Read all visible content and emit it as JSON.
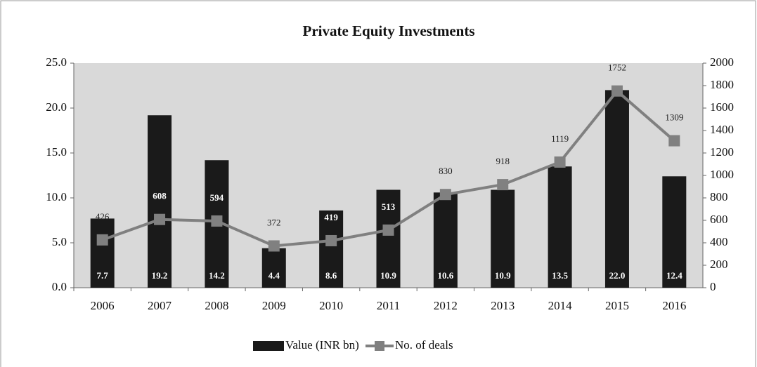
{
  "chart_data": {
    "type": "combo",
    "title": "Private Equity Investments",
    "categories": [
      "2006",
      "2007",
      "2008",
      "2009",
      "2010",
      "2011",
      "2012",
      "2013",
      "2014",
      "2015",
      "2016"
    ],
    "series": [
      {
        "name": "Value (INR bn)",
        "type": "bar",
        "color": "#1a1a1a",
        "values": [
          7.7,
          19.2,
          14.2,
          4.4,
          8.6,
          10.9,
          10.6,
          10.9,
          13.5,
          22.0,
          12.4
        ],
        "value_labels": [
          "7.7",
          "19.2",
          "14.2",
          "4.4",
          "8.6",
          "10.9",
          "10.6",
          "10.9",
          "13.5",
          "22.0",
          "12.4"
        ]
      },
      {
        "name": "No. of deals",
        "type": "line",
        "axis": "y2",
        "color": "#808080",
        "values": [
          426,
          608,
          594,
          372,
          419,
          513,
          830,
          918,
          1119,
          1752,
          1309
        ]
      }
    ],
    "ylim": [
      0,
      25
    ],
    "yticks": [
      {
        "value": 0,
        "label": "0.0"
      },
      {
        "value": 5,
        "label": "5.0"
      },
      {
        "value": 10,
        "label": "10.0"
      },
      {
        "value": 15,
        "label": "15.0"
      },
      {
        "value": 20,
        "label": "20.0"
      },
      {
        "value": 25,
        "label": "25.0"
      }
    ],
    "y2lim": [
      0,
      2000
    ],
    "y2ticks": [
      0,
      200,
      400,
      600,
      800,
      1000,
      1200,
      1400,
      1600,
      1800,
      2000
    ],
    "legend": "bottom",
    "plot_background": "#d9d9d9"
  }
}
